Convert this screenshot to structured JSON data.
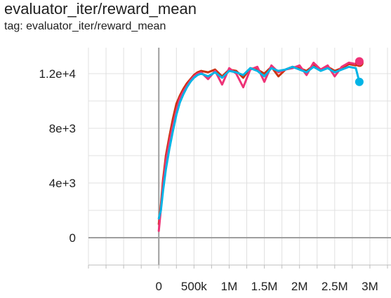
{
  "title": "evaluator_iter/reward_mean",
  "tag_line": "tag: evaluator_iter/reward_mean",
  "chart_data": {
    "type": "line",
    "title": "evaluator_iter/reward_mean",
    "xlabel": "",
    "ylabel": "",
    "xlim": [
      -1000000,
      3300000
    ],
    "ylim": [
      -2000,
      13900
    ],
    "x_ticks": [
      0,
      500000,
      1000000,
      1500000,
      2000000,
      2500000,
      3000000
    ],
    "x_tick_labels": [
      "0",
      "500k",
      "1M",
      "1.5M",
      "2M",
      "2.5M",
      "3M"
    ],
    "y_ticks": [
      0,
      4000,
      8000,
      12000
    ],
    "y_tick_labels": [
      "0",
      "4e+3",
      "8e+3",
      "1.2e+4"
    ],
    "grid": true,
    "legend": "none",
    "series": [
      {
        "color": "#cc3311",
        "x": [
          0,
          30000,
          60000,
          100000,
          150000,
          200000,
          250000,
          300000,
          350000,
          400000,
          450000,
          500000,
          550000,
          600000,
          700000,
          800000,
          900000,
          1000000,
          1100000,
          1200000,
          1300000,
          1400000,
          1500000,
          1600000,
          1700000,
          1800000,
          1900000,
          2000000,
          2100000,
          2200000,
          2300000,
          2400000,
          2500000,
          2600000,
          2700000,
          2800000,
          2850000
        ],
        "y": [
          1000,
          2400,
          4200,
          6000,
          7400,
          8700,
          9800,
          10400,
          10900,
          11300,
          11600,
          11900,
          12100,
          12200,
          12100,
          12300,
          11800,
          12300,
          12200,
          11700,
          12400,
          12300,
          12000,
          12500,
          11800,
          12300,
          12500,
          12400,
          12200,
          12600,
          12300,
          12500,
          12200,
          12400,
          12700,
          12600,
          12800
        ]
      },
      {
        "color": "#ee3377",
        "x": [
          0,
          30000,
          60000,
          100000,
          150000,
          200000,
          250000,
          300000,
          350000,
          400000,
          450000,
          500000,
          550000,
          600000,
          700000,
          800000,
          900000,
          1000000,
          1100000,
          1200000,
          1300000,
          1400000,
          1500000,
          1600000,
          1700000,
          1800000,
          1900000,
          2000000,
          2100000,
          2200000,
          2300000,
          2400000,
          2500000,
          2600000,
          2700000,
          2800000,
          2850000
        ],
        "y": [
          500,
          2100,
          3800,
          5600,
          7000,
          8200,
          9300,
          10200,
          10700,
          11100,
          11500,
          11800,
          12000,
          12100,
          11600,
          12200,
          11200,
          12400,
          12000,
          11000,
          12300,
          12500,
          11400,
          12600,
          12100,
          12300,
          12400,
          12600,
          11900,
          12800,
          12300,
          12600,
          11800,
          12500,
          12800,
          12700,
          12900
        ]
      },
      {
        "color": "#00b4e6",
        "x": [
          0,
          30000,
          60000,
          100000,
          150000,
          200000,
          250000,
          300000,
          350000,
          400000,
          450000,
          500000,
          550000,
          600000,
          700000,
          800000,
          900000,
          1000000,
          1100000,
          1200000,
          1300000,
          1400000,
          1500000,
          1600000,
          1700000,
          1800000,
          1900000,
          2000000,
          2100000,
          2200000,
          2300000,
          2400000,
          2500000,
          2600000,
          2700000,
          2800000,
          2850000
        ],
        "y": [
          1400,
          2000,
          3400,
          5000,
          6500,
          7800,
          9000,
          9900,
          10500,
          11000,
          11400,
          11700,
          11900,
          12000,
          11800,
          12100,
          11700,
          12200,
          12100,
          11900,
          12400,
          12200,
          11800,
          12400,
          12200,
          12300,
          12500,
          12300,
          12100,
          12500,
          12200,
          12400,
          12100,
          12300,
          12500,
          12400,
          11400
        ]
      }
    ]
  }
}
